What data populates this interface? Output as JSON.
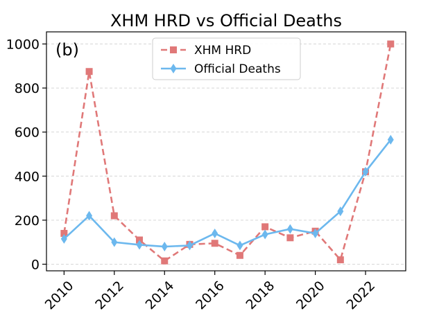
{
  "chart_data": {
    "type": "line",
    "title": "XHM HRD vs Official Deaths",
    "panel_label": "(b)",
    "xlabel": "",
    "ylabel": "",
    "x": [
      2010,
      2011,
      2012,
      2013,
      2014,
      2015,
      2016,
      2017,
      2018,
      2019,
      2020,
      2021,
      2022,
      2023
    ],
    "xticks": [
      "2010",
      "2012",
      "2014",
      "2016",
      "2018",
      "2020",
      "2022"
    ],
    "yticks": [
      "0",
      "200",
      "400",
      "600",
      "800",
      "1000"
    ],
    "xlim": [
      2009.3,
      2023.6
    ],
    "ylim": [
      -30,
      1055
    ],
    "grid": "horizontal dashed",
    "legend_position": "top-center",
    "series": [
      {
        "name": "XHM HRD",
        "color": "#e07878",
        "style": "dashed",
        "marker": "square",
        "values": [
          140,
          875,
          220,
          110,
          15,
          90,
          95,
          40,
          170,
          120,
          150,
          20,
          420,
          1000
        ]
      },
      {
        "name": "Official Deaths",
        "color": "#6cb8ee",
        "style": "solid",
        "marker": "diamond",
        "values": [
          115,
          220,
          100,
          88,
          80,
          85,
          140,
          85,
          135,
          160,
          140,
          240,
          420,
          565
        ]
      }
    ]
  }
}
